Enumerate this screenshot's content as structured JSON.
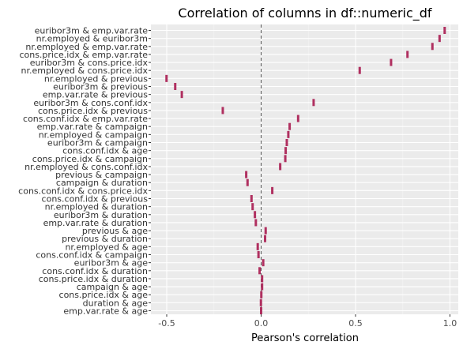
{
  "chart_data": {
    "type": "scatter",
    "title": "Correlation of columns in df::numeric_df",
    "xlabel": "Pearson's correlation",
    "ylabel": "",
    "xlim": [
      -0.5,
      1.0
    ],
    "xticks": [
      -0.5,
      0.0,
      0.5,
      1.0
    ],
    "xtick_labels": [
      "-0.5",
      "0.0",
      "0.5",
      "1.0"
    ],
    "grid": true,
    "reference_line": 0,
    "categories": [
      "euribor3m & emp.var.rate",
      "nr.employed & euribor3m",
      "nr.employed & emp.var.rate",
      "cons.price.idx & emp.var.rate",
      "euribor3m & cons.price.idx",
      "nr.employed & cons.price.idx",
      "nr.employed & previous",
      "euribor3m & previous",
      "emp.var.rate & previous",
      "euribor3m & cons.conf.idx",
      "cons.price.idx & previous",
      "cons.conf.idx & emp.var.rate",
      "emp.var.rate & campaign",
      "nr.employed & campaign",
      "euribor3m & campaign",
      "cons.conf.idx & age",
      "cons.price.idx & campaign",
      "nr.employed & cons.conf.idx",
      "previous & campaign",
      "campaign & duration",
      "cons.conf.idx & cons.price.idx",
      "cons.conf.idx & previous",
      "nr.employed & duration",
      "euribor3m & duration",
      "emp.var.rate & duration",
      "previous & age",
      "previous & duration",
      "nr.employed & age",
      "cons.conf.idx & campaign",
      "euribor3m & age",
      "cons.conf.idx & duration",
      "cons.price.idx & duration",
      "campaign & age",
      "cons.price.idx & age",
      "duration & age",
      "emp.var.rate & age"
    ],
    "values": [
      0.972,
      0.945,
      0.907,
      0.775,
      0.688,
      0.522,
      -0.501,
      -0.455,
      -0.42,
      0.278,
      -0.203,
      0.196,
      0.151,
      0.144,
      0.136,
      0.13,
      0.128,
      0.101,
      -0.079,
      -0.072,
      0.059,
      -0.051,
      -0.045,
      -0.033,
      -0.028,
      0.024,
      0.021,
      -0.018,
      -0.014,
      0.011,
      -0.008,
      0.005,
      0.005,
      0.001,
      -0.001,
      0.0
    ],
    "colors": {
      "panel_background": "#ebebeb",
      "grid_major": "#ffffff",
      "grid_minor": "#f5f5f5",
      "point": "#b03060",
      "reference_line": "#555555"
    }
  }
}
